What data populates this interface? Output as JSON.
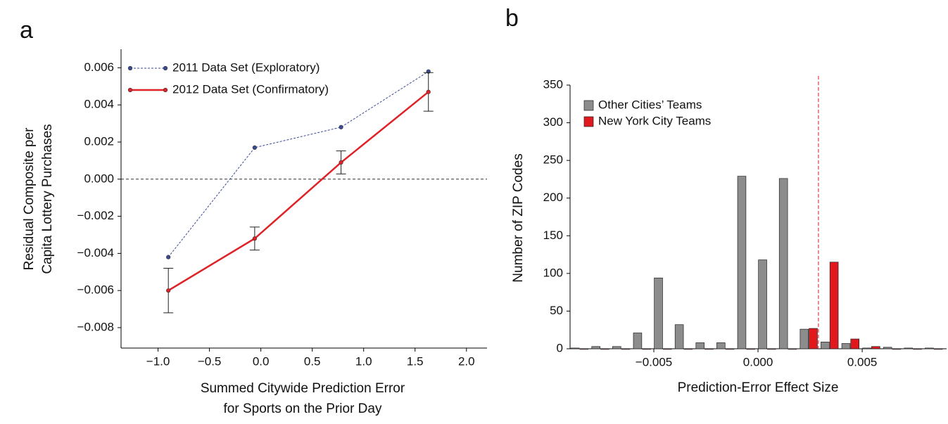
{
  "chart_data": [
    {
      "type": "line",
      "panel": "a",
      "ylabel": [
        "Residual Composite per",
        "Capita Lottery Purchases"
      ],
      "xlabel": [
        "Summed Citywide Prediction Error",
        "for Sports on the Prior Day"
      ],
      "xlim": [
        -1.36,
        2.2
      ],
      "xticks": [
        {
          "value": -1.0,
          "label": "−1.0"
        },
        {
          "value": -0.5,
          "label": "−0.5"
        },
        {
          "value": 0.0,
          "label": "0.0"
        },
        0.5,
        {
          "value": 1.0,
          "label": "1.0"
        },
        1.5,
        {
          "value": 2.0,
          "label": "2.0"
        }
      ],
      "ylim": [
        -0.0091,
        0.007
      ],
      "yticks": [
        {
          "value": -0.008,
          "label": "−0.008"
        },
        {
          "value": -0.006,
          "label": "−0.006"
        },
        {
          "value": -0.004,
          "label": "−0.004"
        },
        {
          "value": -0.002,
          "label": "−0.002"
        },
        {
          "value": 0.0,
          "label": "0.000"
        },
        0.002,
        0.004,
        0.006
      ],
      "reference_line": 0.0,
      "legend": "top-left",
      "x": [
        -0.9,
        -0.06,
        0.78,
        1.63
      ],
      "series": [
        {
          "name": "2011 Data Set (Exploratory)",
          "color": "#3a4a94",
          "dashed": true,
          "values": [
            -0.0042,
            0.0017,
            0.0028,
            0.0058
          ]
        },
        {
          "name": "2012 Data Set (Confirmatory)",
          "color": "#e02126",
          "dashed": false,
          "values": [
            -0.006,
            -0.0032,
            0.0009,
            0.0047
          ],
          "errors": [
            0.0012,
            0.00062,
            0.00062,
            0.00104
          ]
        }
      ]
    },
    {
      "type": "histogram",
      "panel": "b",
      "ylabel": [
        "Number of ZIP Codes"
      ],
      "xlabel": [
        "Prediction-Error Effect Size"
      ],
      "xlim": [
        -0.00902,
        0.00905
      ],
      "xticks": [
        {
          "value": -0.005,
          "label": "−0.005"
        },
        {
          "value": 0.0,
          "label": "0.000"
        },
        0.005
      ],
      "ylim": [
        0,
        350
      ],
      "yticks": [
        0,
        50,
        100,
        150,
        200,
        250,
        300,
        350
      ],
      "vline": 0.0029,
      "legend": "top-left",
      "bins": [
        -0.009,
        -0.008,
        -0.007,
        -0.006,
        -0.005,
        -0.004,
        -0.003,
        -0.002,
        -0.001,
        0.0,
        0.001,
        0.002,
        0.003,
        0.004,
        0.005,
        0.006,
        0.007,
        0.008,
        0.009
      ],
      "series": [
        {
          "name": "Other Cities’ Teams",
          "color": "#8c8c8c",
          "values": [
            1,
            3,
            3,
            21,
            94,
            32,
            8,
            8,
            229,
            118,
            226,
            26,
            9,
            7,
            1,
            2,
            1,
            1
          ]
        },
        {
          "name": "New York City Teams",
          "color": "#e0191f",
          "values": [
            0,
            0,
            0,
            0,
            0,
            0,
            0,
            0,
            0,
            0,
            0,
            27,
            115,
            13,
            3,
            0,
            0,
            0
          ]
        }
      ]
    }
  ]
}
